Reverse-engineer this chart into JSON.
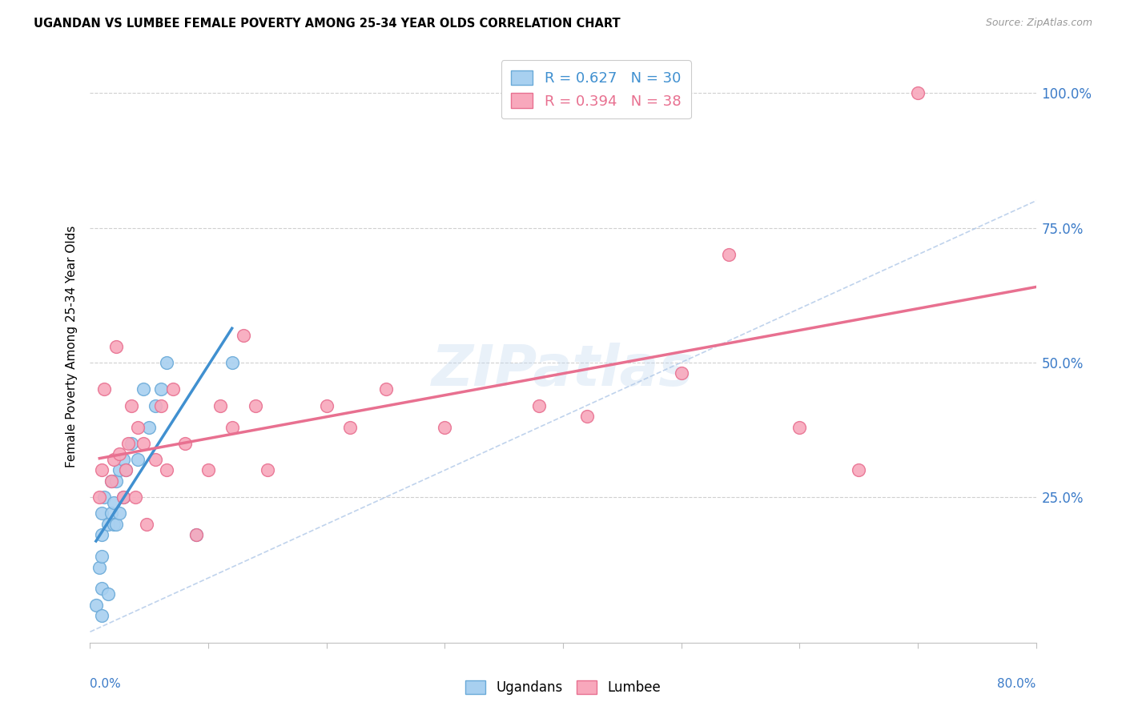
{
  "title": "UGANDAN VS LUMBEE FEMALE POVERTY AMONG 25-34 YEAR OLDS CORRELATION CHART",
  "source": "Source: ZipAtlas.com",
  "ylabel": "Female Poverty Among 25-34 Year Olds",
  "xlim": [
    0.0,
    0.8
  ],
  "ylim": [
    -0.02,
    1.08
  ],
  "yticks": [
    0.25,
    0.5,
    0.75,
    1.0
  ],
  "ytick_labels": [
    "25.0%",
    "50.0%",
    "75.0%",
    "100.0%"
  ],
  "ugandan_R": "R = 0.627",
  "ugandan_N": "N = 30",
  "lumbee_R": "R = 0.394",
  "lumbee_N": "N = 38",
  "color_ugandan": "#A8D0F0",
  "color_lumbee": "#F8A8BC",
  "color_ugandan_edge": "#6AAAD8",
  "color_lumbee_edge": "#E87090",
  "color_ugandan_line": "#4090D0",
  "color_lumbee_line": "#E87090",
  "color_diag_line": "#B0C8E8",
  "watermark": "ZIPatlas",
  "ugandan_x": [
    0.005,
    0.008,
    0.01,
    0.01,
    0.01,
    0.01,
    0.01,
    0.012,
    0.015,
    0.015,
    0.018,
    0.018,
    0.02,
    0.02,
    0.022,
    0.022,
    0.025,
    0.025,
    0.028,
    0.028,
    0.03,
    0.035,
    0.04,
    0.045,
    0.05,
    0.055,
    0.06,
    0.065,
    0.09,
    0.12
  ],
  "ugandan_y": [
    0.05,
    0.12,
    0.03,
    0.08,
    0.14,
    0.18,
    0.22,
    0.25,
    0.07,
    0.2,
    0.22,
    0.28,
    0.2,
    0.24,
    0.2,
    0.28,
    0.22,
    0.3,
    0.25,
    0.32,
    0.3,
    0.35,
    0.32,
    0.45,
    0.38,
    0.42,
    0.45,
    0.5,
    0.18,
    0.5
  ],
  "lumbee_x": [
    0.008,
    0.01,
    0.012,
    0.018,
    0.02,
    0.022,
    0.025,
    0.028,
    0.03,
    0.032,
    0.035,
    0.038,
    0.04,
    0.045,
    0.048,
    0.055,
    0.06,
    0.065,
    0.07,
    0.08,
    0.09,
    0.1,
    0.11,
    0.12,
    0.13,
    0.14,
    0.15,
    0.2,
    0.22,
    0.25,
    0.3,
    0.38,
    0.42,
    0.5,
    0.54,
    0.6,
    0.65,
    0.7
  ],
  "lumbee_y": [
    0.25,
    0.3,
    0.45,
    0.28,
    0.32,
    0.53,
    0.33,
    0.25,
    0.3,
    0.35,
    0.42,
    0.25,
    0.38,
    0.35,
    0.2,
    0.32,
    0.42,
    0.3,
    0.45,
    0.35,
    0.18,
    0.3,
    0.42,
    0.38,
    0.55,
    0.42,
    0.3,
    0.42,
    0.38,
    0.45,
    0.38,
    0.42,
    0.4,
    0.48,
    0.7,
    0.38,
    0.3,
    1.0
  ]
}
